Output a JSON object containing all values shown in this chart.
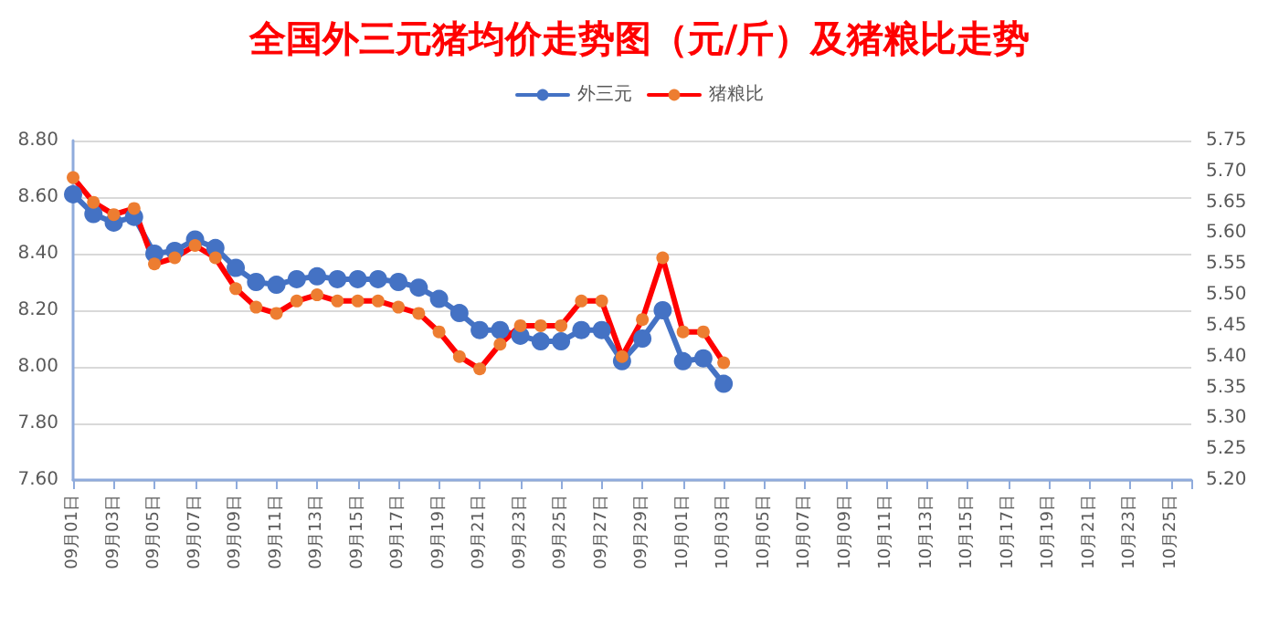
{
  "chart_data": {
    "type": "line",
    "title": "全国外三元猪均价走势图（元/斤）及猪粮比走势",
    "categories": [
      "09月01日",
      null,
      "09月03日",
      null,
      "09月05日",
      null,
      "09月07日",
      null,
      "09月09日",
      null,
      "09月11日",
      null,
      "09月13日",
      null,
      "09月15日",
      null,
      "09月17日",
      null,
      "09月19日",
      null,
      "09月21日",
      null,
      "09月23日",
      null,
      "09月25日",
      null,
      "09月27日",
      null,
      "09月29日",
      null,
      "10月01日",
      null,
      "10月03日",
      null,
      "10月05日",
      null,
      "10月07日",
      null,
      "10月09日",
      null,
      "10月11日",
      null,
      "10月13日",
      null,
      "10月15日",
      null,
      "10月17日",
      null,
      "10月19日",
      null,
      "10月21日",
      null,
      "10月23日",
      null,
      "10月25日",
      null
    ],
    "series": [
      {
        "name": "外三元",
        "color": "#4472c4",
        "values": [
          8.61,
          8.54,
          8.51,
          8.53,
          8.4,
          8.41,
          8.45,
          8.42,
          8.35,
          8.3,
          8.29,
          8.31,
          8.32,
          8.31,
          8.31,
          8.31,
          8.3,
          8.28,
          8.24,
          8.19,
          8.13,
          8.13,
          8.11,
          8.09,
          8.09,
          8.13,
          8.13,
          8.02,
          8.1,
          8.2,
          8.02,
          8.03,
          7.94,
          null,
          null,
          null,
          null,
          null,
          null,
          null,
          null,
          null,
          null,
          null,
          null,
          null,
          null,
          null,
          null,
          null,
          null,
          null,
          null,
          null,
          null,
          null
        ]
      },
      {
        "name": "猪粮比",
        "color": "#ff0000",
        "axis": "y2",
        "values": [
          5.69,
          5.65,
          5.63,
          5.64,
          5.55,
          5.56,
          5.58,
          5.56,
          5.51,
          5.48,
          5.47,
          5.49,
          5.5,
          5.49,
          5.49,
          5.49,
          5.48,
          5.47,
          5.44,
          5.4,
          5.38,
          5.42,
          5.45,
          5.45,
          5.45,
          5.49,
          5.49,
          5.4,
          5.46,
          5.56,
          5.44,
          5.44,
          5.39,
          null,
          null,
          null,
          null,
          null,
          null,
          null,
          null,
          null,
          null,
          null,
          null,
          null,
          null,
          null,
          null,
          null,
          null,
          null,
          null,
          null,
          null,
          null
        ]
      }
    ],
    "ylim": [
      7.6,
      8.8
    ],
    "yticks": [
      {
        "value": 7.6,
        "label": "7.60"
      },
      {
        "value": 7.8,
        "label": "7.80"
      },
      {
        "value": 8.0,
        "label": "8.00"
      },
      {
        "value": 8.2,
        "label": "8.20"
      },
      {
        "value": 8.4,
        "label": "8.40"
      },
      {
        "value": 8.6,
        "label": "8.60"
      },
      {
        "value": 8.8,
        "label": "8.80"
      }
    ],
    "y2lim": [
      5.2,
      5.75
    ],
    "y2ticks": [
      {
        "value": 5.2,
        "label": "5.20"
      },
      {
        "value": 5.25,
        "label": "5.25"
      },
      {
        "value": 5.3,
        "label": "5.30"
      },
      {
        "value": 5.35,
        "label": "5.35"
      },
      {
        "value": 5.4,
        "label": "5.40"
      },
      {
        "value": 5.45,
        "label": "5.45"
      },
      {
        "value": 5.5,
        "label": "5.50"
      },
      {
        "value": 5.55,
        "label": "5.55"
      },
      {
        "value": 5.6,
        "label": "5.60"
      },
      {
        "value": 5.65,
        "label": "5.65"
      },
      {
        "value": 5.7,
        "label": "5.70"
      },
      {
        "value": 5.75,
        "label": "5.75"
      }
    ],
    "grid": "y",
    "legend": "top",
    "marker": "circle",
    "line_style": "solid"
  }
}
